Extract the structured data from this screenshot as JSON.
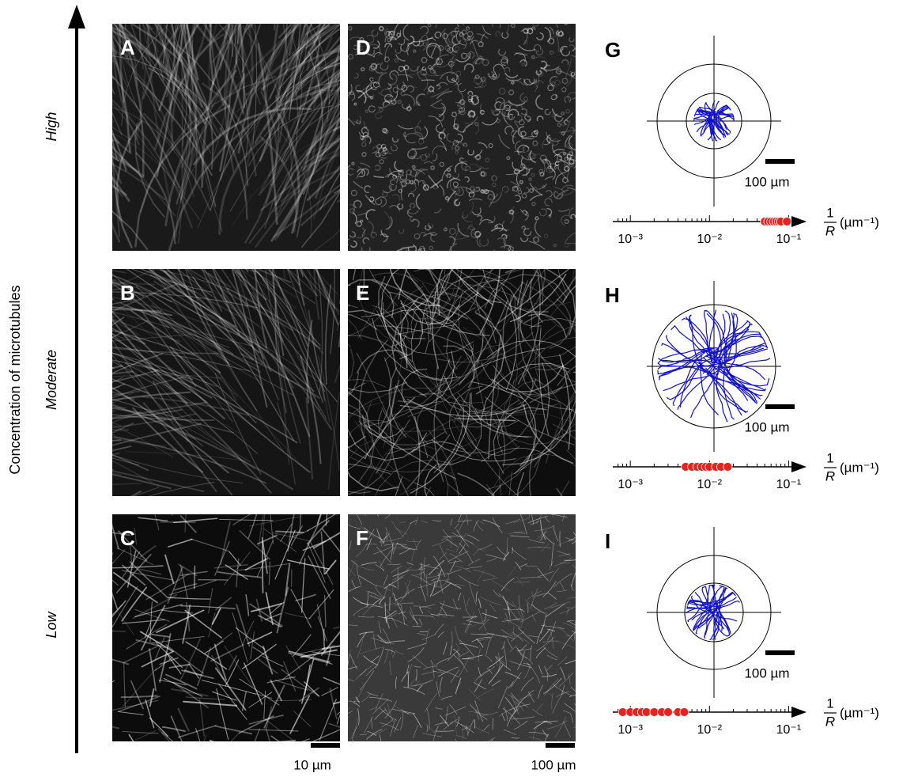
{
  "y_axis_label": "Concentration of microtubules",
  "levels": [
    "High",
    "Moderate",
    "Low"
  ],
  "image_panels": [
    "A",
    "B",
    "C",
    "D",
    "E",
    "F"
  ],
  "scale_bars": [
    "10 µm",
    "100 µm"
  ],
  "axis": {
    "log": true,
    "xlim": [
      0.0006,
      0.15
    ],
    "xticks": [
      {
        "value": 0.001,
        "label": "10⁻³"
      },
      {
        "value": 0.01,
        "label": "10⁻²"
      },
      {
        "value": 0.1,
        "label": "10⁻¹"
      }
    ],
    "minor_ticks": [
      0.0007,
      0.0008,
      0.0009,
      0.002,
      0.003,
      0.004,
      0.005,
      0.006,
      0.007,
      0.008,
      0.009,
      0.02,
      0.03,
      0.04,
      0.05,
      0.06,
      0.07,
      0.08,
      0.09
    ],
    "numerator": "1",
    "denominator": "R",
    "unit": "(µm⁻¹)"
  },
  "charts": [
    {
      "label": "G",
      "type": "strip",
      "scale_bar": "100 µm",
      "color": "#e8231e",
      "values": [
        0.05,
        0.055,
        0.06,
        0.065,
        0.07,
        0.075,
        0.08,
        0.095
      ]
    },
    {
      "label": "H",
      "type": "strip",
      "scale_bar": "100 µm",
      "color": "#e8231e",
      "values": [
        0.005,
        0.006,
        0.007,
        0.008,
        0.009,
        0.01,
        0.012,
        0.014,
        0.017
      ]
    },
    {
      "label": "I",
      "type": "strip",
      "scale_bar": "100 µm",
      "color": "#e8231e",
      "values": [
        0.0008,
        0.001,
        0.0012,
        0.0014,
        0.0016,
        0.002,
        0.0025,
        0.003,
        0.004,
        0.0048
      ]
    }
  ]
}
